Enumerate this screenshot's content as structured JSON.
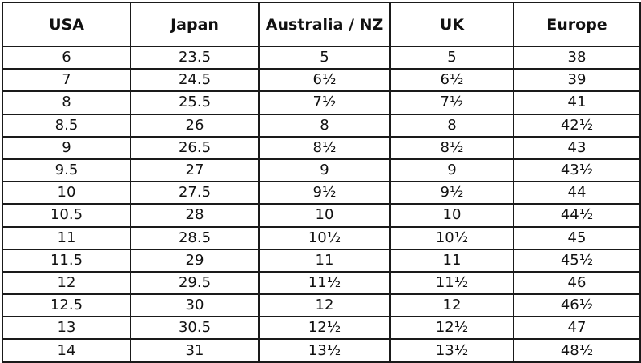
{
  "table": {
    "headers": [
      "USA",
      "Japan",
      "Australia / NZ",
      "UK",
      "Europe"
    ],
    "rows": [
      [
        "6",
        "23.5",
        "5",
        "5",
        "38"
      ],
      [
        "7",
        "24.5",
        "6½",
        "6½",
        "39"
      ],
      [
        "8",
        "25.5",
        "7½",
        "7½",
        "41"
      ],
      [
        "8.5",
        "26",
        "8",
        "8",
        "42½"
      ],
      [
        "9",
        "26.5",
        "8½",
        "8½",
        "43"
      ],
      [
        "9.5",
        "27",
        "9",
        "9",
        "43½"
      ],
      [
        "10",
        "27.5",
        "9½",
        "9½",
        "44"
      ],
      [
        "10.5",
        "28",
        "10",
        "10",
        "44½"
      ],
      [
        "11",
        "28.5",
        "10½",
        "10½",
        "45"
      ],
      [
        "11.5",
        "29",
        "11",
        "11",
        "45½"
      ],
      [
        "12",
        "29.5",
        "11½",
        "11½",
        "46"
      ],
      [
        "12.5",
        "30",
        "12",
        "12",
        "46½"
      ],
      [
        "13",
        "30.5",
        "12½",
        "12½",
        "47"
      ],
      [
        "14",
        "31",
        "13½",
        "13½",
        "48½"
      ]
    ]
  }
}
